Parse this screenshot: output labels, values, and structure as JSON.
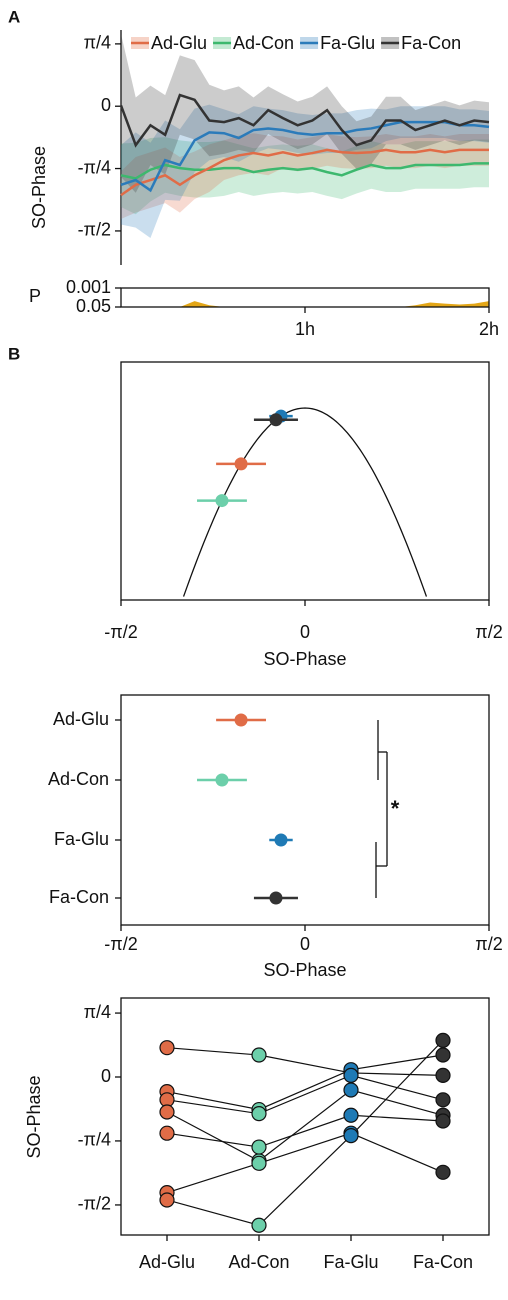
{
  "panel_labels": [
    "A",
    "B"
  ],
  "chart_data": [
    {
      "type": "line",
      "ylabel": "SO-Phase",
      "x": [
        0,
        0.08,
        0.16,
        0.24,
        0.32,
        0.4,
        0.48,
        0.56,
        0.64,
        0.72,
        0.8,
        0.88,
        0.96,
        1.04,
        1.12,
        1.2,
        1.28,
        1.36,
        1.44,
        1.52,
        1.6,
        1.68,
        1.76,
        1.84,
        1.92,
        2
      ],
      "xlim": [
        0,
        2
      ],
      "ylim": [
        -2.0,
        0.96
      ],
      "yticks": [
        {
          "value": 0.785,
          "label": "π/4"
        },
        0,
        {
          "value": -0.785,
          "label": "-π/4"
        },
        {
          "value": -1.571,
          "label": "-π/2"
        }
      ],
      "legend": "top",
      "series": [
        {
          "name": "Ad-Glu",
          "color": "#e06c47",
          "values": [
            -1.12,
            -0.99,
            -0.93,
            -0.87,
            -0.99,
            -0.87,
            -0.78,
            -0.68,
            -0.62,
            -0.59,
            -0.62,
            -0.58,
            -0.62,
            -0.59,
            -0.55,
            -0.58,
            -0.59,
            -0.58,
            -0.55,
            -0.58,
            -0.58,
            -0.55,
            -0.58,
            -0.55,
            -0.55,
            -0.55
          ],
          "errors": [
            0.3,
            0.35,
            0.35,
            0.35,
            0.35,
            0.3,
            0.3,
            0.25,
            0.25,
            0.25,
            0.25,
            0.2,
            0.2,
            0.2,
            0.2,
            0.2,
            0.2,
            0.2,
            0.2,
            0.2,
            0.2,
            0.2,
            0.2,
            0.2,
            0.2,
            0.2
          ]
        },
        {
          "name": "Ad-Con",
          "color": "#3db86e",
          "values": [
            -0.87,
            -0.91,
            -0.8,
            -0.74,
            -0.78,
            -0.8,
            -0.8,
            -0.78,
            -0.78,
            -0.83,
            -0.8,
            -0.78,
            -0.8,
            -0.78,
            -0.83,
            -0.87,
            -0.8,
            -0.74,
            -0.78,
            -0.78,
            -0.74,
            -0.74,
            -0.74,
            -0.74,
            -0.72,
            -0.72
          ],
          "errors": [
            0.4,
            0.45,
            0.4,
            0.35,
            0.35,
            0.35,
            0.35,
            0.35,
            0.3,
            0.3,
            0.3,
            0.3,
            0.3,
            0.3,
            0.3,
            0.3,
            0.3,
            0.3,
            0.3,
            0.3,
            0.3,
            0.3,
            0.3,
            0.3,
            0.3,
            0.3
          ]
        },
        {
          "name": "Fa-Glu",
          "color": "#2b7bba",
          "values": [
            -0.99,
            -0.93,
            -1.06,
            -0.68,
            -0.74,
            -0.43,
            -0.33,
            -0.34,
            -0.4,
            -0.3,
            -0.28,
            -0.3,
            -0.34,
            -0.36,
            -0.34,
            -0.34,
            -0.3,
            -0.28,
            -0.24,
            -0.2,
            -0.2,
            -0.2,
            -0.2,
            -0.24,
            -0.24,
            -0.26
          ],
          "errors": [
            0.5,
            0.6,
            0.6,
            0.5,
            0.45,
            0.4,
            0.35,
            0.3,
            0.3,
            0.3,
            0.25,
            0.25,
            0.25,
            0.25,
            0.25,
            0.25,
            0.25,
            0.25,
            0.2,
            0.2,
            0.2,
            0.2,
            0.2,
            0.2,
            0.2,
            0.2
          ]
        },
        {
          "name": "Fa-Con",
          "color": "#333333",
          "values": [
            0.01,
            -0.49,
            -0.24,
            -0.36,
            0.14,
            0.08,
            -0.18,
            -0.2,
            -0.15,
            -0.24,
            -0.05,
            -0.15,
            -0.24,
            -0.18,
            -0.05,
            -0.3,
            -0.49,
            -0.43,
            -0.18,
            -0.18,
            -0.3,
            -0.24,
            -0.18,
            -0.24,
            -0.18,
            -0.2
          ],
          "errors": [
            0.9,
            0.6,
            0.5,
            0.5,
            0.5,
            0.5,
            0.45,
            0.4,
            0.4,
            0.35,
            0.3,
            0.3,
            0.3,
            0.3,
            0.3,
            0.3,
            0.3,
            0.3,
            0.3,
            0.3,
            0.25,
            0.25,
            0.25,
            0.25,
            0.25,
            0.25
          ]
        }
      ]
    },
    {
      "type": "area",
      "ylabel": "P",
      "log": true,
      "color": "#e3a617",
      "x": [
        0,
        0.08,
        0.16,
        0.24,
        0.32,
        0.4,
        0.48,
        0.56,
        0.64,
        0.72,
        0.8,
        0.88,
        0.96,
        1.04,
        1.12,
        1.2,
        1.28,
        1.36,
        1.44,
        1.52,
        1.6,
        1.68,
        1.76,
        1.84,
        1.92,
        2
      ],
      "values": [
        0.05,
        0.05,
        0.05,
        0.05,
        0.05,
        0.015,
        0.035,
        0.05,
        0.05,
        0.05,
        0.05,
        0.05,
        0.05,
        0.05,
        0.05,
        0.05,
        0.05,
        0.05,
        0.05,
        0.05,
        0.035,
        0.02,
        0.025,
        0.03,
        0.025,
        0.015
      ],
      "xlim": [
        0,
        2
      ],
      "xticks": [
        {
          "value": 1,
          "label": "1h"
        },
        {
          "value": 2,
          "label": "2h"
        }
      ],
      "ylim": [
        0.05,
        0.001
      ],
      "yticks": [
        0.001,
        0.05
      ]
    },
    {
      "type": "scatter",
      "curve": "cosine",
      "xlabel": "SO-Phase",
      "values": [
        -0.546,
        -0.709,
        -0.205,
        -0.248
      ],
      "errors": [
        0.213,
        0.213,
        0.1,
        0.188
      ],
      "colors": [
        "#e06c47",
        "#6ccfaa",
        "#1f7ab5",
        "#333333"
      ],
      "xlim": [
        -1.571,
        1.571
      ],
      "ylim": [
        0.5,
        1.12
      ],
      "xticks": [
        {
          "value": -1.571,
          "label": "-π/2"
        },
        0,
        {
          "value": 1.571,
          "label": "π/2"
        }
      ]
    },
    {
      "type": "dot",
      "xlabel": "SO-Phase",
      "categories": [
        "Ad-Glu",
        "Ad-Con",
        "Fa-Glu",
        "Fa-Con"
      ],
      "values": [
        -0.546,
        -0.709,
        -0.205,
        -0.248
      ],
      "errors": [
        0.213,
        0.213,
        0.1,
        0.188
      ],
      "colors": [
        "#e06c47",
        "#6ccfaa",
        "#1f7ab5",
        "#333333"
      ],
      "xlim": [
        -1.571,
        1.571
      ],
      "xticks": [
        {
          "value": -1.571,
          "label": "-π/2"
        },
        0,
        {
          "value": 1.571,
          "label": "π/2"
        }
      ],
      "annotation": "*"
    },
    {
      "type": "paired",
      "ylabel": "SO-Phase",
      "categories": [
        "Ad-Glu",
        "Ad-Con",
        "Fa-Glu",
        "Fa-Con"
      ],
      "colors": [
        "#e06c47",
        "#6ccfaa",
        "#1f7ab5",
        "#333333"
      ],
      "ylim": [
        -1.94,
        0.97
      ],
      "yticks": [
        {
          "value": 0.785,
          "label": "π/4"
        },
        0,
        {
          "value": -0.785,
          "label": "-π/4"
        },
        {
          "value": -1.571,
          "label": "-π/2"
        }
      ],
      "series": [
        {
          "values": [
            0.36,
            0.27,
            0.05,
            0.02
          ]
        },
        {
          "values": [
            -0.18,
            -0.4,
            0.09,
            0.27
          ]
        },
        {
          "values": [
            -0.28,
            -0.45,
            0.02,
            -0.28
          ]
        },
        {
          "values": [
            -0.43,
            -1.03,
            -0.16,
            -0.47
          ]
        },
        {
          "values": [
            -0.69,
            -0.86,
            -0.47,
            -0.54
          ]
        },
        {
          "values": [
            -1.42,
            -1.06,
            -0.69,
            -1.17
          ]
        },
        {
          "values": [
            -1.51,
            -1.82,
            -0.72,
            0.45
          ]
        }
      ]
    }
  ]
}
